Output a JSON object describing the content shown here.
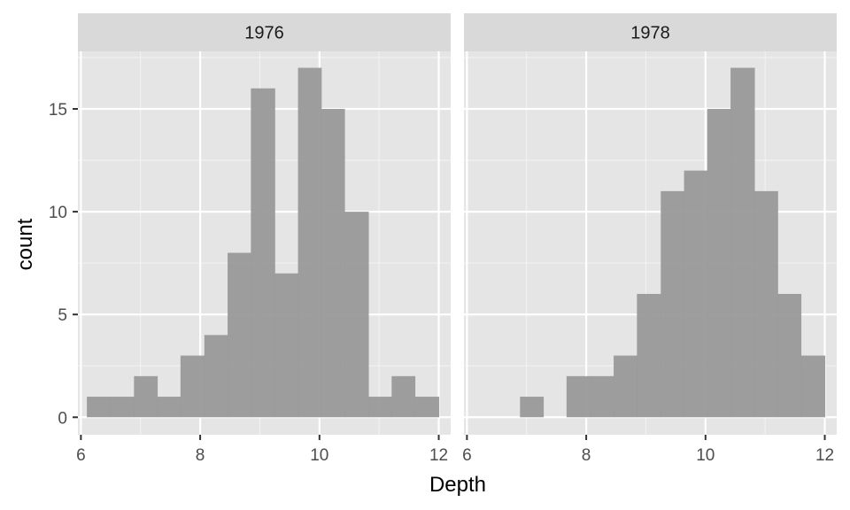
{
  "chart_data": {
    "type": "bar",
    "subtype": "histogram-facet",
    "xlabel": "Depth",
    "ylabel": "count",
    "xlim": [
      5.95,
      12.2
    ],
    "ylim": [
      -0.85,
      17.8
    ],
    "x_ticks": [
      "6",
      "8",
      "10",
      "12"
    ],
    "y_ticks": [
      "0",
      "5",
      "10",
      "15"
    ],
    "grid": true,
    "bin_width": 0.3928,
    "bar_color": "#999999",
    "panel_background": "#e5e5e5",
    "strip_background": "#d9d9d9",
    "panels": [
      {
        "label": "1976",
        "bins": [
          {
            "x0": 6.1,
            "x1": 6.49,
            "count": 1
          },
          {
            "x0": 6.49,
            "x1": 6.89,
            "count": 1
          },
          {
            "x0": 6.89,
            "x1": 7.28,
            "count": 2
          },
          {
            "x0": 7.28,
            "x1": 7.67,
            "count": 1
          },
          {
            "x0": 7.67,
            "x1": 8.07,
            "count": 3
          },
          {
            "x0": 8.07,
            "x1": 8.46,
            "count": 4
          },
          {
            "x0": 8.46,
            "x1": 8.85,
            "count": 8
          },
          {
            "x0": 8.85,
            "x1": 9.25,
            "count": 16
          },
          {
            "x0": 9.25,
            "x1": 9.64,
            "count": 7
          },
          {
            "x0": 9.64,
            "x1": 10.03,
            "count": 17
          },
          {
            "x0": 10.03,
            "x1": 10.42,
            "count": 15
          },
          {
            "x0": 10.42,
            "x1": 10.82,
            "count": 10
          },
          {
            "x0": 10.82,
            "x1": 11.21,
            "count": 1
          },
          {
            "x0": 11.21,
            "x1": 11.6,
            "count": 2
          },
          {
            "x0": 11.6,
            "x1": 12.0,
            "count": 1
          }
        ]
      },
      {
        "label": "1978",
        "bins": [
          {
            "x0": 6.89,
            "x1": 7.28,
            "count": 1
          },
          {
            "x0": 7.67,
            "x1": 8.07,
            "count": 2
          },
          {
            "x0": 8.07,
            "x1": 8.46,
            "count": 2
          },
          {
            "x0": 8.46,
            "x1": 8.85,
            "count": 3
          },
          {
            "x0": 8.85,
            "x1": 9.25,
            "count": 6
          },
          {
            "x0": 9.25,
            "x1": 9.64,
            "count": 11
          },
          {
            "x0": 9.64,
            "x1": 10.03,
            "count": 12
          },
          {
            "x0": 10.03,
            "x1": 10.42,
            "count": 15
          },
          {
            "x0": 10.42,
            "x1": 10.82,
            "count": 17
          },
          {
            "x0": 10.82,
            "x1": 11.21,
            "count": 11
          },
          {
            "x0": 11.21,
            "x1": 11.6,
            "count": 6
          },
          {
            "x0": 11.6,
            "x1": 12.0,
            "count": 3
          }
        ]
      }
    ]
  }
}
